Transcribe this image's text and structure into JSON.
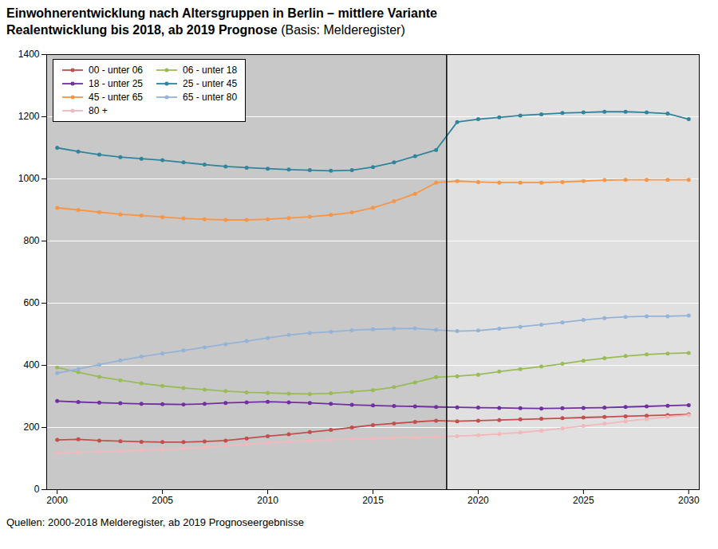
{
  "chart_data": {
    "type": "line",
    "title": "Einwohnerentwicklung nach Altersgruppen in Berlin – mittlere Variante",
    "subtitle": [
      "Realentwicklung bis 2018, ab 2019 Prognose",
      "(Basis: Melderegister)"
    ],
    "caption": "Quellen: 2000-2018 Melderegister, ab 2019 Prognoseergebnisse",
    "x": [
      2000,
      2001,
      2002,
      2003,
      2004,
      2005,
      2006,
      2007,
      2008,
      2009,
      2010,
      2011,
      2012,
      2013,
      2014,
      2015,
      2016,
      2017,
      2018,
      2019,
      2020,
      2021,
      2022,
      2023,
      2024,
      2025,
      2026,
      2027,
      2028,
      2029,
      2030
    ],
    "series": [
      {
        "name": "00 - unter 06",
        "color": "#c0504d",
        "values": [
          160,
          162,
          158,
          156,
          154,
          153,
          153,
          155,
          158,
          165,
          172,
          178,
          185,
          192,
          200,
          208,
          213,
          218,
          222,
          220,
          222,
          224,
          226,
          228,
          230,
          232,
          234,
          236,
          238,
          240,
          242
        ]
      },
      {
        "name": "06 - unter 18",
        "color": "#9bbb59",
        "values": [
          393,
          378,
          363,
          352,
          342,
          334,
          327,
          322,
          317,
          313,
          311,
          309,
          308,
          310,
          315,
          320,
          330,
          345,
          362,
          365,
          370,
          380,
          388,
          396,
          405,
          415,
          423,
          430,
          435,
          438,
          440
        ]
      },
      {
        "name": "18 - unter 25",
        "color": "#7030a0",
        "values": [
          285,
          282,
          280,
          278,
          276,
          275,
          274,
          276,
          279,
          281,
          283,
          281,
          279,
          276,
          273,
          271,
          269,
          268,
          266,
          265,
          264,
          263,
          262,
          261,
          262,
          263,
          264,
          266,
          268,
          270,
          272
        ]
      },
      {
        "name": "25 - unter 45",
        "color": "#31849b",
        "values": [
          1100,
          1088,
          1078,
          1070,
          1065,
          1060,
          1053,
          1046,
          1040,
          1036,
          1033,
          1030,
          1028,
          1026,
          1028,
          1038,
          1053,
          1073,
          1093,
          1183,
          1192,
          1198,
          1204,
          1208,
          1212,
          1214,
          1216,
          1216,
          1214,
          1210,
          1192
        ]
      },
      {
        "name": "45 - unter 65",
        "color": "#f79646",
        "values": [
          907,
          900,
          893,
          886,
          882,
          877,
          873,
          870,
          868,
          868,
          870,
          874,
          878,
          884,
          892,
          907,
          928,
          952,
          988,
          993,
          990,
          988,
          988,
          988,
          990,
          993,
          996,
          997,
          997,
          997,
          997
        ]
      },
      {
        "name": "65 - unter 80",
        "color": "#95b3d7",
        "values": [
          375,
          388,
          402,
          416,
          428,
          438,
          448,
          458,
          468,
          478,
          488,
          498,
          504,
          508,
          513,
          516,
          518,
          519,
          514,
          510,
          512,
          518,
          524,
          531,
          538,
          546,
          552,
          556,
          558,
          558,
          560
        ]
      },
      {
        "name": "80 +",
        "color": "#f2b8be",
        "values": [
          118,
          120,
          122,
          124,
          127,
          129,
          132,
          136,
          141,
          146,
          151,
          155,
          158,
          161,
          163,
          165,
          167,
          168,
          170,
          172,
          175,
          179,
          184,
          190,
          197,
          205,
          212,
          220,
          227,
          234,
          240
        ]
      }
    ],
    "xlim": [
      1999.5,
      2030.5
    ],
    "xticks": [
      2000,
      2005,
      2010,
      2015,
      2020,
      2025,
      2030
    ],
    "ylim": [
      0,
      1400
    ],
    "yticks": [
      0,
      200,
      400,
      600,
      800,
      1000,
      1200,
      1400
    ],
    "grid": true,
    "legend": "upper left",
    "marker": "circle",
    "regions": [
      {
        "x": [
          1999.5,
          2018.5
        ],
        "color": "#c8c8c8"
      },
      {
        "x": [
          2018.5,
          2030.5
        ],
        "color": "#e0e0e0"
      }
    ],
    "vline": 2018.5
  }
}
